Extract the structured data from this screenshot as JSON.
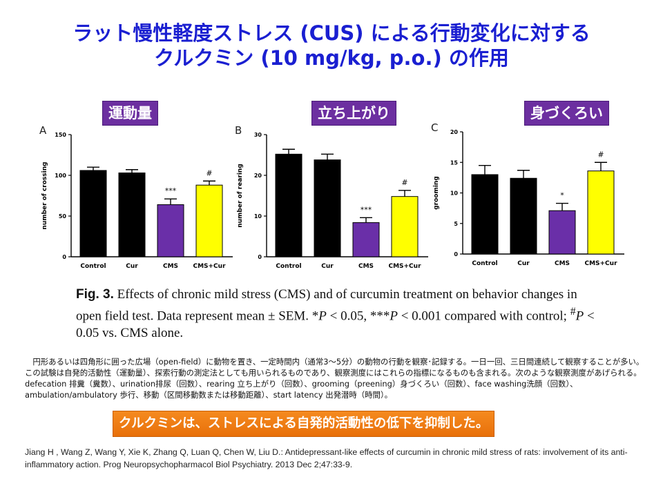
{
  "title": {
    "line1": "ラット慢性軽度ストレス (CUS) による行動変化に対する",
    "line2": "クルクミン (10 mg/kg, p.o.) の作用"
  },
  "sections": [
    "運動量",
    "立ち上がり",
    "身づくろい"
  ],
  "colors": {
    "title": "#1a1fd1",
    "label_bg": "#6c2fa0",
    "control": "#000000",
    "cur": "#000000",
    "cms": "#6a2fa8",
    "cms_cur": "#ffff00",
    "conclusion_bg": "#f07d14"
  },
  "chart_data": [
    {
      "type": "bar",
      "panel": "A",
      "categories": [
        "Control",
        "Cur",
        "CMS",
        "CMS+Cur"
      ],
      "values": [
        106,
        103,
        64,
        88
      ],
      "errors": [
        4,
        4,
        7,
        5
      ],
      "annotations": [
        "",
        "",
        "***",
        "#"
      ],
      "ylabel": "number of crossing",
      "ylim": [
        0,
        150
      ],
      "yticks": [
        0,
        50,
        100,
        150
      ]
    },
    {
      "type": "bar",
      "panel": "B",
      "categories": [
        "Control",
        "Cur",
        "CMS",
        "CMS+Cur"
      ],
      "values": [
        25.2,
        23.8,
        8.4,
        14.8
      ],
      "errors": [
        1.2,
        1.4,
        1.2,
        1.5
      ],
      "annotations": [
        "",
        "",
        "***",
        "#"
      ],
      "ylabel": "number of rearing",
      "ylim": [
        0,
        30
      ],
      "yticks": [
        0,
        10,
        20,
        30
      ]
    },
    {
      "type": "bar",
      "panel": "C",
      "categories": [
        "Control",
        "Cur",
        "CMS",
        "CMS+Cur"
      ],
      "values": [
        13.0,
        12.4,
        7.1,
        13.6
      ],
      "errors": [
        1.5,
        1.3,
        1.2,
        1.4
      ],
      "annotations": [
        "",
        "",
        "*",
        "#"
      ],
      "ylabel": "grooming",
      "ylim": [
        0,
        20
      ],
      "yticks": [
        0,
        5,
        10,
        15,
        20
      ]
    }
  ],
  "caption": {
    "fig": "Fig. 3.",
    "text1": " Effects of chronic mild stress (CMS) and of curcumin treatment on behavior changes in open field test. Data represent mean ± SEM. *",
    "p1": "P",
    "text2": " < 0.05, ***",
    "p2": "P",
    "text3": " < 0.001 compared with control; ",
    "hash": "#",
    "p3": "P",
    "text4": " < 0.05 vs. CMS alone."
  },
  "description": "　円形あるいは四角形に囲った広場（open-field）に動物を置き、一定時間内（通常3～5分）の動物の行動を観察･記録する。一日一回、三日間連続して観察することが多い。この試験は自発的活動性（運動量）、探索行動の測定法としても用いられるものであり、観察測度にはこれらの指標になるものも含まれる。次のような観察測度があげられる。defecation 排糞（糞数）、urination排尿（回数）、rearing 立ち上がり（回数）、grooming（preening）身づくろい（回数）、face washing洗顔（回数）、ambulation/ambulatory 歩行、移動（区間移動数または移動距離）、start latency 出発潜時（時間）。",
  "conclusion": "クルクミンは、ストレスによる自発的活動性の低下を抑制した。",
  "reference": "Jiang H , Wang Z, Wang Y, Xie K, Zhang Q, Luan Q, Chen W, Liu D.: Antidepressant-like effects of curcumin in chronic mild stress of rats: involvement of its anti-inflammatory action.   Prog Neuropsychopharmacol Biol Psychiatry. 2013 Dec 2;47:33-9."
}
